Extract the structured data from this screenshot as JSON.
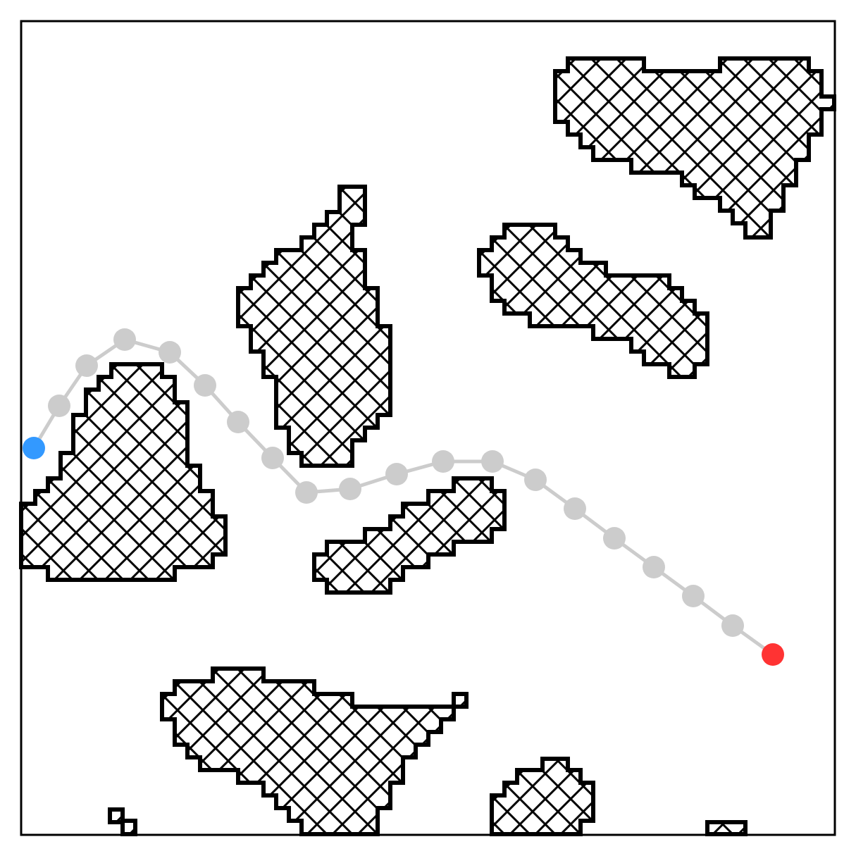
{
  "title": "",
  "colors": {
    "background": "#ffffff",
    "frame": "#000000",
    "obstacle_outline": "#000000",
    "obstacle_hatch": "#000000",
    "path": "#cccccc",
    "start": "#3399ff",
    "goal": "#ff3333"
  },
  "legend": {
    "obstacle": "obstacle-hatch",
    "start": "start-marker",
    "goal": "goal-marker",
    "path": "path-waypoint"
  }
}
